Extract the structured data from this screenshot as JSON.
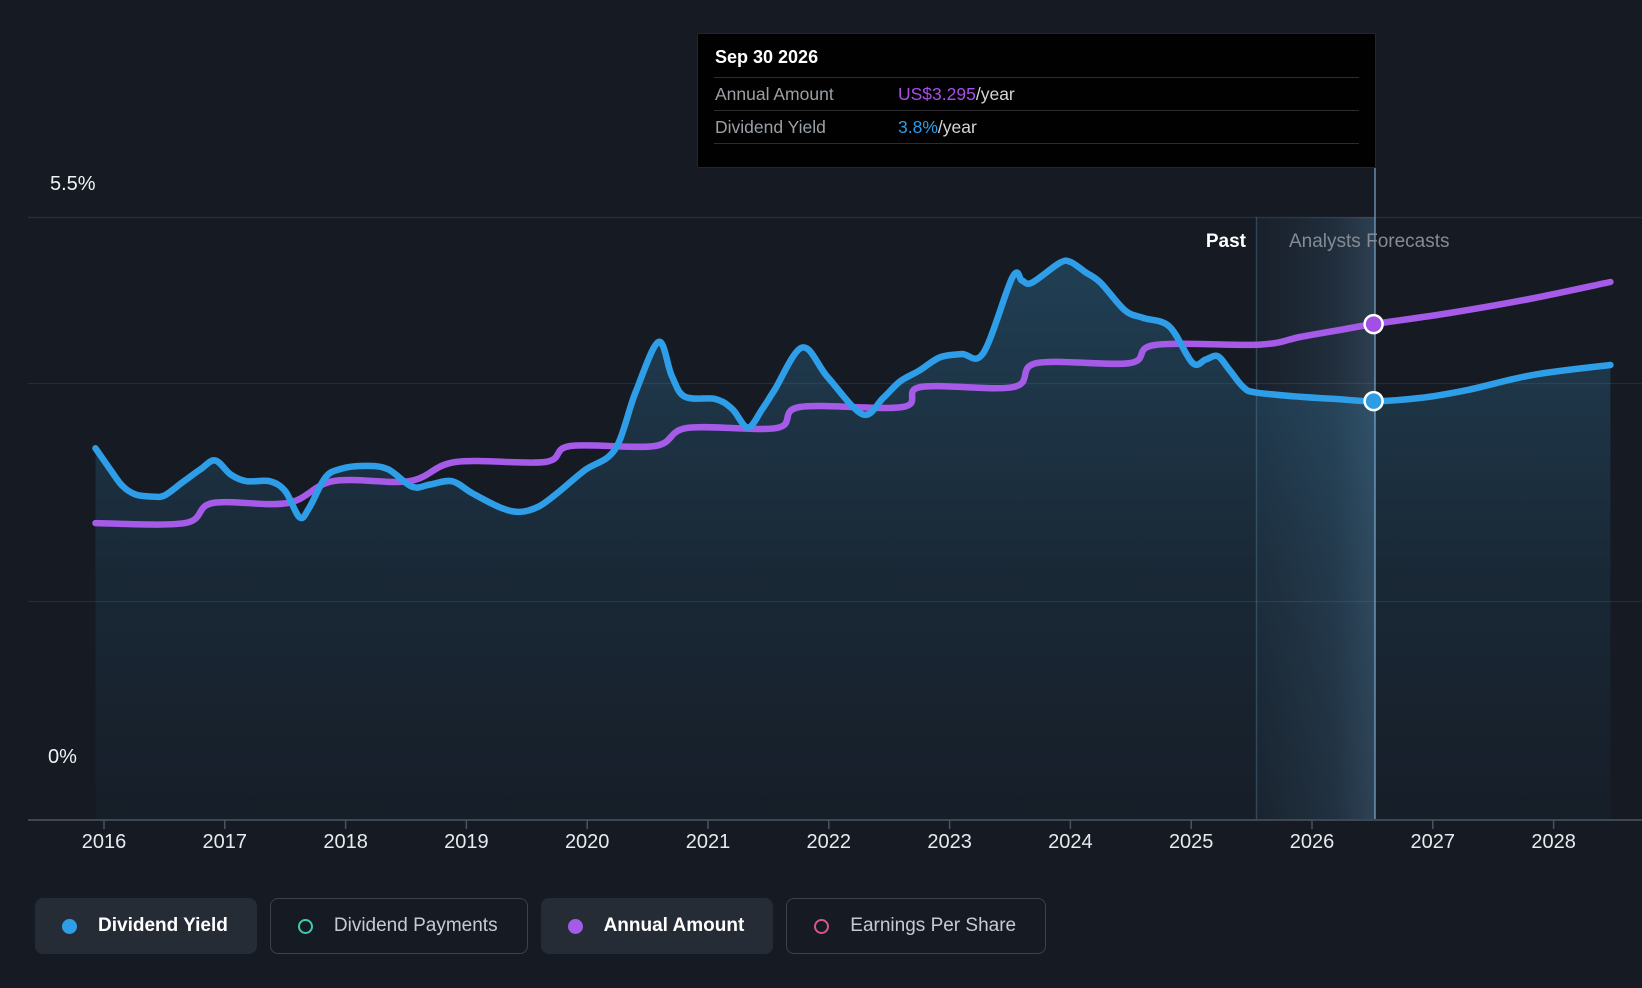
{
  "tooltip": {
    "date": "Sep 30 2026",
    "rows": [
      {
        "label": "Annual Amount",
        "value": "US$3.295",
        "suffix": "/year",
        "color": "#a84fe8"
      },
      {
        "label": "Dividend Yield",
        "value": "3.8%",
        "suffix": "/year",
        "color": "#2d9ce8"
      }
    ]
  },
  "zones": {
    "past": "Past",
    "forecast": "Analysts Forecasts"
  },
  "y_axis": {
    "top_label": "5.5%",
    "bottom_label": "0%"
  },
  "x_axis": {
    "years": [
      2016,
      2017,
      2018,
      2019,
      2020,
      2021,
      2022,
      2023,
      2024,
      2025,
      2026,
      2027,
      2028
    ]
  },
  "legend": [
    {
      "label": "Dividend Yield",
      "style": "filled",
      "color": "#2e9ee8",
      "active": true
    },
    {
      "label": "Dividend Payments",
      "style": "outlined",
      "color": "#3bcdb3",
      "active": false
    },
    {
      "label": "Annual Amount",
      "style": "filled",
      "color": "#a55ae8",
      "active": true
    },
    {
      "label": "Earnings Per Share",
      "style": "outlined",
      "color": "#da5490",
      "active": false
    }
  ],
  "chart_data": {
    "type": "line",
    "title": "Dividend Yield vs Annual Amount, past and analysts forecasts",
    "x_range": [
      2015.9,
      2028.6
    ],
    "y_left": {
      "unit": "%",
      "min": 0,
      "max": 5.5,
      "gridlines_pct": [
        5.5,
        4,
        2,
        0
      ],
      "labeled": [
        "5.5%",
        "0%"
      ]
    },
    "forecast_divider_year": 2025.54,
    "hover_year": 2026.51,
    "series": [
      {
        "name": "Dividend Yield",
        "unit": "%",
        "color": "#2e9ee8",
        "points": [
          [
            2015.93,
            3.39
          ],
          [
            2016.05,
            3.2
          ],
          [
            2016.15,
            3.05
          ],
          [
            2016.26,
            2.97
          ],
          [
            2016.4,
            2.95
          ],
          [
            2016.5,
            2.96
          ],
          [
            2016.65,
            3.08
          ],
          [
            2016.8,
            3.2
          ],
          [
            2016.92,
            3.28
          ],
          [
            2017.05,
            3.15
          ],
          [
            2017.18,
            3.09
          ],
          [
            2017.37,
            3.09
          ],
          [
            2017.5,
            3.0
          ],
          [
            2017.62,
            2.76
          ],
          [
            2017.7,
            2.85
          ],
          [
            2017.83,
            3.12
          ],
          [
            2017.95,
            3.2
          ],
          [
            2018.16,
            3.23
          ],
          [
            2018.35,
            3.2
          ],
          [
            2018.55,
            3.04
          ],
          [
            2018.7,
            3.06
          ],
          [
            2018.88,
            3.09
          ],
          [
            2019.05,
            2.98
          ],
          [
            2019.28,
            2.85
          ],
          [
            2019.44,
            2.81
          ],
          [
            2019.6,
            2.86
          ],
          [
            2019.75,
            2.98
          ],
          [
            2019.98,
            3.19
          ],
          [
            2020.23,
            3.38
          ],
          [
            2020.4,
            3.9
          ],
          [
            2020.59,
            4.36
          ],
          [
            2020.7,
            4.05
          ],
          [
            2020.81,
            3.86
          ],
          [
            2021.06,
            3.84
          ],
          [
            2021.2,
            3.75
          ],
          [
            2021.33,
            3.58
          ],
          [
            2021.45,
            3.75
          ],
          [
            2021.55,
            3.92
          ],
          [
            2021.78,
            4.31
          ],
          [
            2021.99,
            4.04
          ],
          [
            2022.28,
            3.7
          ],
          [
            2022.45,
            3.85
          ],
          [
            2022.59,
            4.0
          ],
          [
            2022.75,
            4.1
          ],
          [
            2022.92,
            4.22
          ],
          [
            2023.1,
            4.25
          ],
          [
            2023.28,
            4.26
          ],
          [
            2023.52,
            4.95
          ],
          [
            2023.6,
            4.92
          ],
          [
            2023.68,
            4.9
          ],
          [
            2023.91,
            5.08
          ],
          [
            2024.0,
            5.09
          ],
          [
            2024.12,
            5.0
          ],
          [
            2024.25,
            4.9
          ],
          [
            2024.45,
            4.65
          ],
          [
            2024.6,
            4.58
          ],
          [
            2024.82,
            4.5
          ],
          [
            2025.01,
            4.17
          ],
          [
            2025.12,
            4.2
          ],
          [
            2025.22,
            4.23
          ],
          [
            2025.32,
            4.1
          ],
          [
            2025.43,
            3.95
          ],
          [
            2025.53,
            3.9
          ],
          [
            2025.9,
            3.86
          ],
          [
            2026.2,
            3.84
          ],
          [
            2026.51,
            3.82
          ],
          [
            2026.9,
            3.85
          ],
          [
            2027.28,
            3.92
          ],
          [
            2027.83,
            4.06
          ],
          [
            2028.47,
            4.15
          ]
        ],
        "marker": {
          "year": 2026.51,
          "value": 3.82
        }
      },
      {
        "name": "Annual Amount",
        "unit": "US$/year",
        "color": "#a55ae8",
        "points": [
          [
            2015.93,
            1.973
          ],
          [
            2016.67,
            1.973
          ],
          [
            2016.9,
            2.106
          ],
          [
            2017.52,
            2.106
          ],
          [
            2017.9,
            2.252
          ],
          [
            2018.53,
            2.252
          ],
          [
            2018.91,
            2.379
          ],
          [
            2019.65,
            2.379
          ],
          [
            2019.86,
            2.485
          ],
          [
            2020.56,
            2.485
          ],
          [
            2020.83,
            2.605
          ],
          [
            2021.57,
            2.605
          ],
          [
            2021.76,
            2.744
          ],
          [
            2022.61,
            2.744
          ],
          [
            2022.76,
            2.877
          ],
          [
            2023.53,
            2.877
          ],
          [
            2023.72,
            3.036
          ],
          [
            2024.49,
            3.036
          ],
          [
            2024.7,
            3.156
          ],
          [
            2025.57,
            3.159
          ],
          [
            2025.9,
            3.209
          ],
          [
            2026.23,
            3.256
          ],
          [
            2026.51,
            3.295
          ],
          [
            2027.14,
            3.369
          ],
          [
            2027.8,
            3.462
          ],
          [
            2028.47,
            3.575
          ]
        ],
        "marker": {
          "year": 2026.51,
          "value": 3.295
        }
      }
    ]
  }
}
